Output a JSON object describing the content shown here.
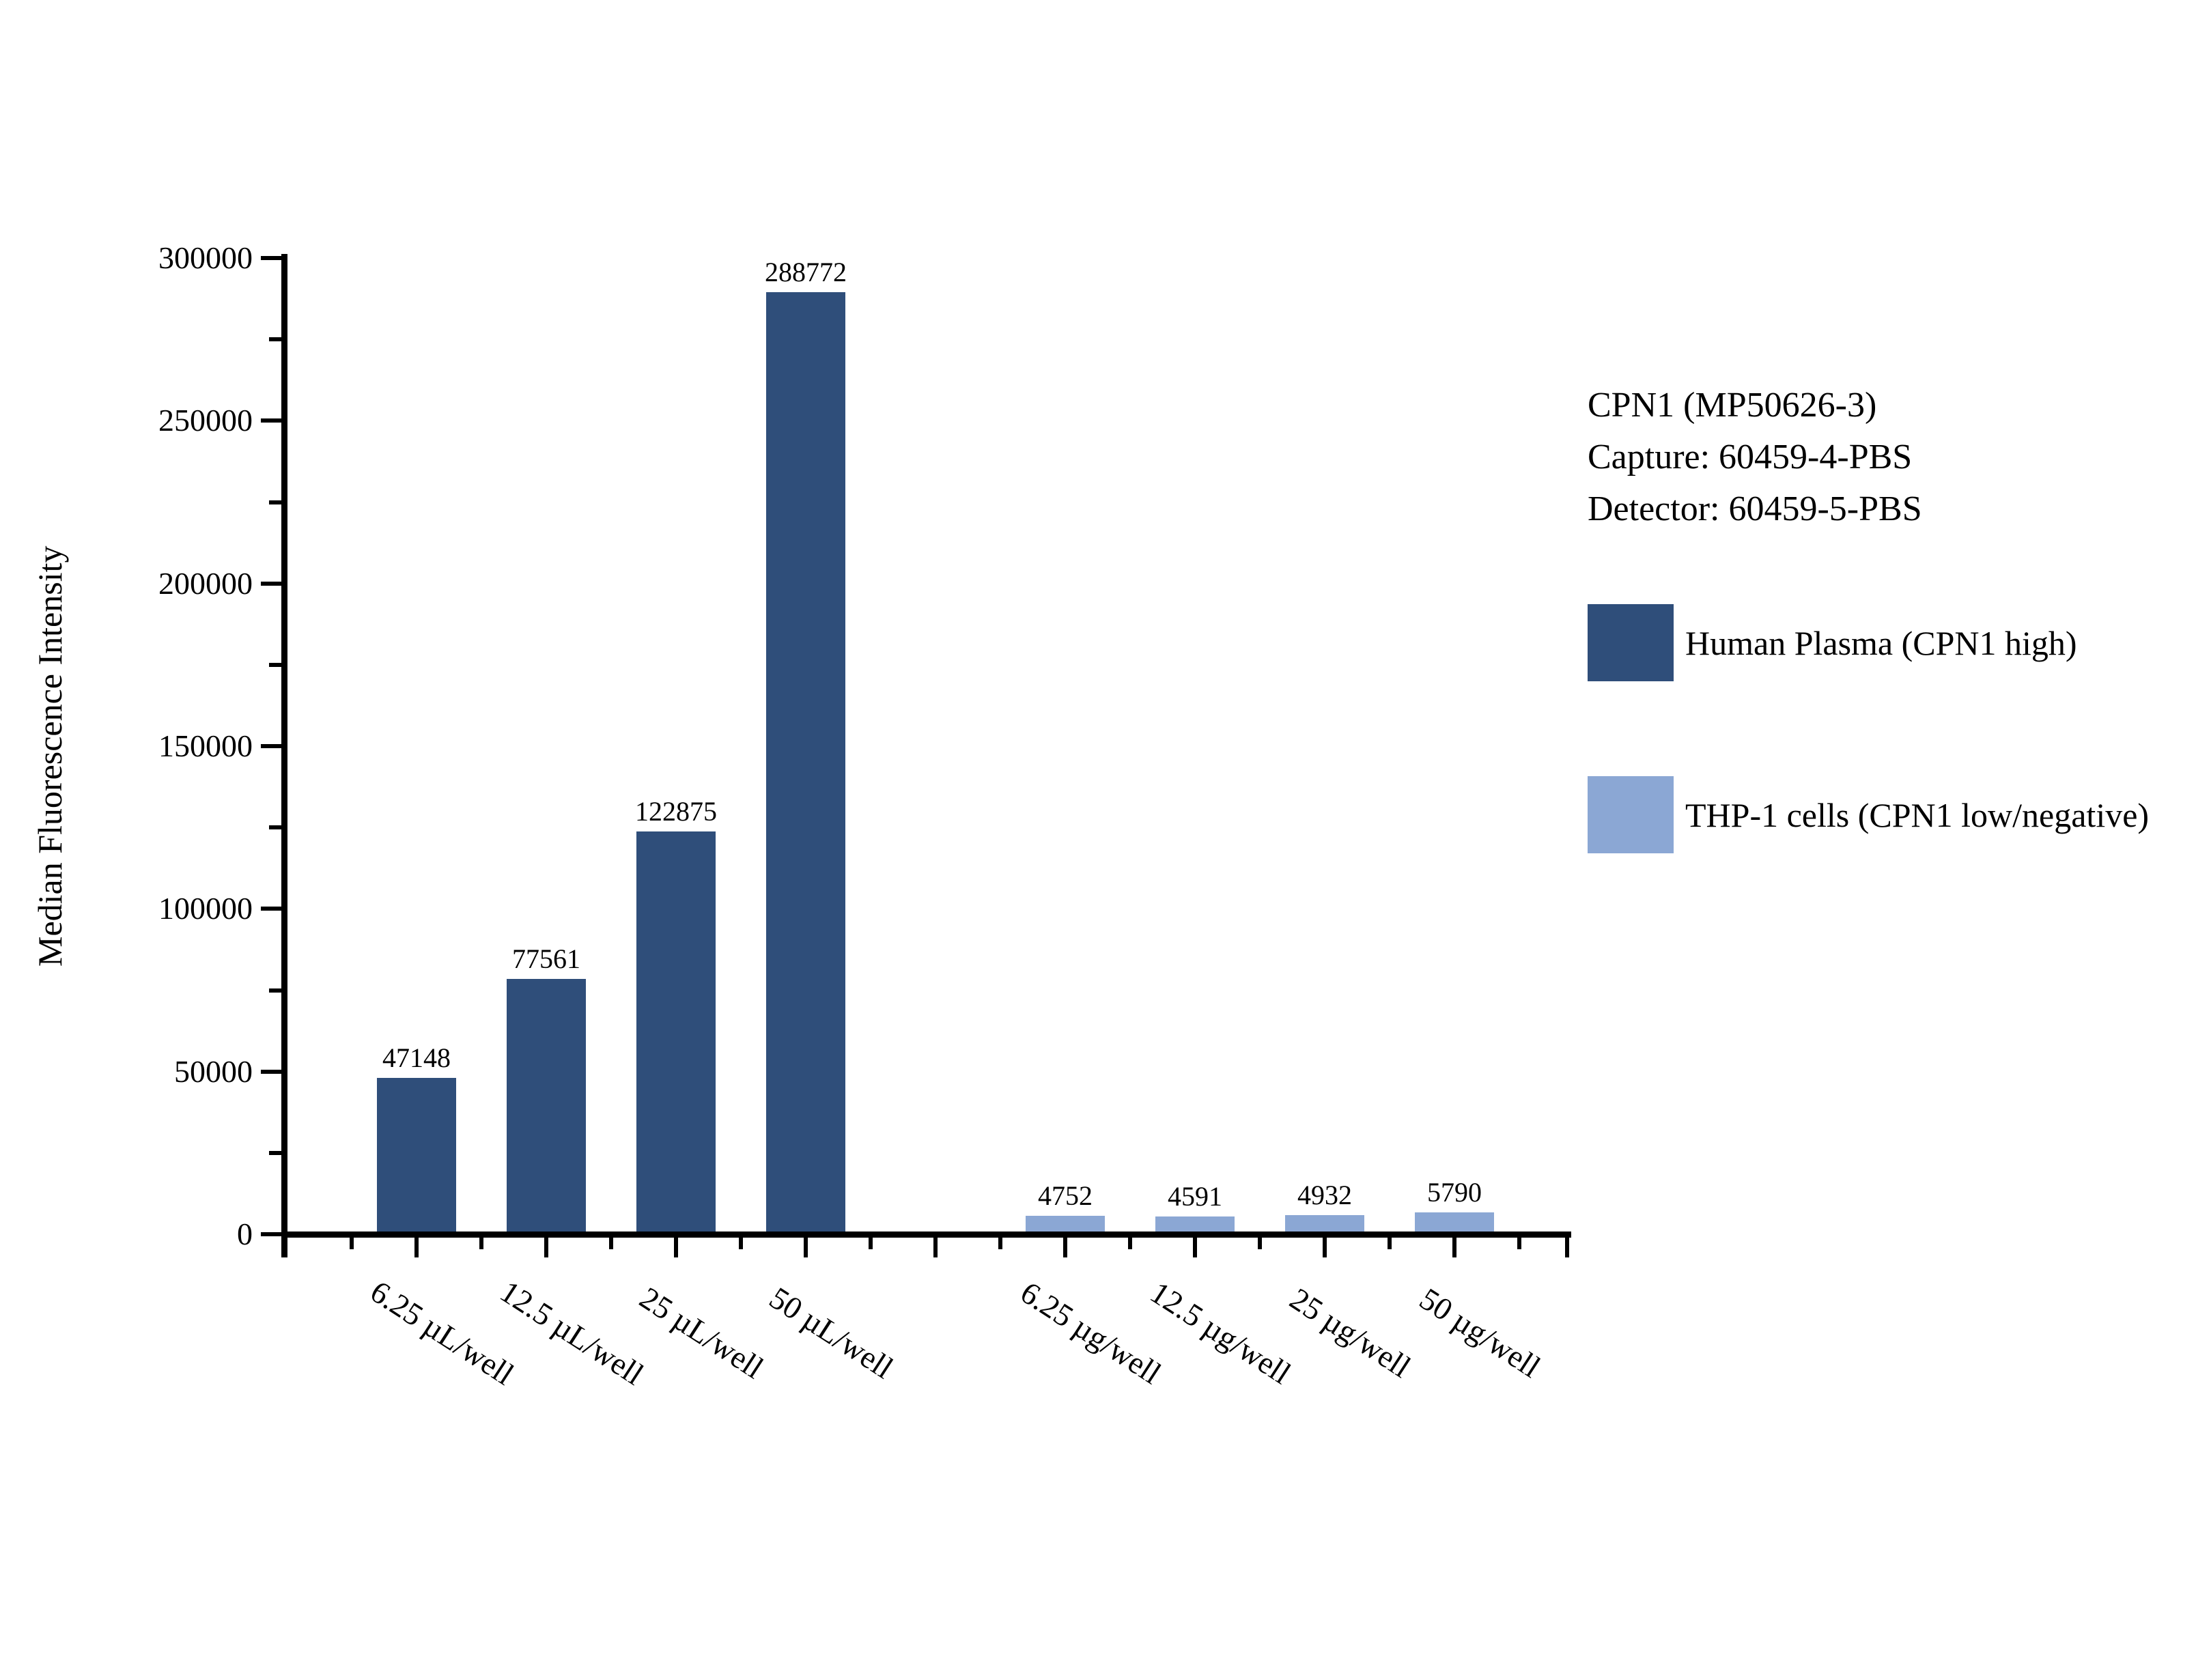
{
  "chart_data": {
    "type": "bar",
    "title": "",
    "xlabel": "",
    "ylabel": "Median Fluorescence Intensity",
    "ylim": [
      0,
      300000
    ],
    "y_major_tick_step": 50000,
    "y_minor_tick_step": 25000,
    "y_tick_labels": [
      "0",
      "50000",
      "100000",
      "150000",
      "200000",
      "250000",
      "300000"
    ],
    "grid": false,
    "legend_position": "right",
    "categories": [
      "6.25 µL/well",
      "12.5 µL/well",
      "25 µL/well",
      "50 µL/well",
      "",
      "6.25 µg/well",
      "12.5 µg/well",
      "25 µg/well",
      "50 µg/well"
    ],
    "series": [
      {
        "name": "Human Plasma (CPN1 high)",
        "color": "#2F4E7A",
        "values": [
          47148,
          77561,
          122875,
          288772,
          null,
          null,
          null,
          null,
          null
        ]
      },
      {
        "name": "THP-1 cells (CPN1 low/negative)",
        "color": "#8BA7D4",
        "values": [
          null,
          null,
          null,
          null,
          null,
          4752,
          4591,
          4932,
          5790
        ]
      }
    ],
    "annotations": [
      "CPN1 (MP50626-3)",
      "Capture: 60459-4-PBS",
      "Detector: 60459-5-PBS"
    ]
  }
}
